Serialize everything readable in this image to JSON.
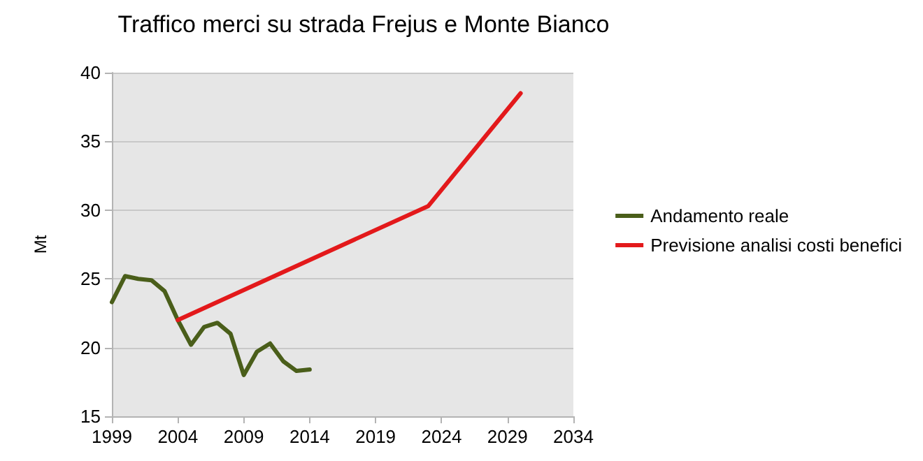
{
  "chart_data": {
    "type": "line",
    "title": "Traffico merci su strada Frejus e Monte Bianco",
    "ylabel": "Mt",
    "series": [
      {
        "name": "Andamento reale",
        "color": "#4a5e1a",
        "x": [
          1999,
          2000,
          2001,
          2002,
          2003,
          2004,
          2005,
          2006,
          2007,
          2008,
          2009,
          2010,
          2011,
          2012,
          2013,
          2014
        ],
        "values": [
          23.3,
          25.2,
          25.0,
          24.9,
          24.1,
          22.0,
          20.2,
          21.5,
          21.8,
          21.0,
          18.0,
          19.7,
          20.3,
          19.0,
          18.3,
          18.4
        ]
      },
      {
        "name": "Previsione analisi costi benefici",
        "color": "#e3191b",
        "x": [
          2004,
          2023,
          2030
        ],
        "values": [
          22.0,
          30.3,
          38.5
        ]
      }
    ],
    "xlim": [
      1999,
      2034
    ],
    "xticks": [
      1999,
      2004,
      2009,
      2014,
      2019,
      2024,
      2029,
      2034
    ],
    "ylim": [
      15,
      40
    ],
    "yticks": [
      15,
      20,
      25,
      30,
      35,
      40
    ],
    "grid": "y",
    "legend": "right",
    "marker": "none",
    "line_style": "solid"
  }
}
